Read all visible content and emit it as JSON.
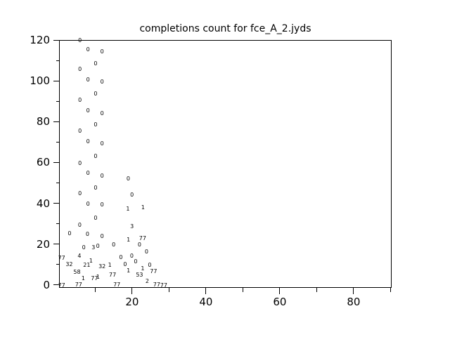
{
  "chart_data": {
    "type": "scatter",
    "title": "completions count for fce_A_2.jyds",
    "xlabel": "",
    "ylabel": "",
    "xlim": [
      0.2,
      90.3
    ],
    "ylim": [
      -1.44,
      120
    ],
    "x_major_ticks": [
      20,
      40,
      60,
      80
    ],
    "x_minor_ticks": [
      10,
      30,
      50,
      70,
      90
    ],
    "y_major_ticks": [
      0,
      20,
      40,
      60,
      80,
      100,
      120
    ],
    "y_minor_ticks": [
      10,
      30,
      50,
      70,
      90,
      110
    ],
    "grid": "off",
    "legend": "none",
    "marker_style": "text-label",
    "colors": {
      "foreground": "#000000",
      "background": "#ffffff"
    },
    "points": [
      {
        "x": 5.85,
        "y": 119.8,
        "label": "0"
      },
      {
        "x": 5.85,
        "y": 105.7,
        "label": "0"
      },
      {
        "x": 5.85,
        "y": 90.4,
        "label": "0"
      },
      {
        "x": 5.85,
        "y": 75.4,
        "label": "0"
      },
      {
        "x": 5.85,
        "y": 59.4,
        "label": "0"
      },
      {
        "x": 5.85,
        "y": 44.7,
        "label": "0"
      },
      {
        "x": 5.8,
        "y": 29.3,
        "label": "0"
      },
      {
        "x": 8.05,
        "y": 115.3,
        "label": "0"
      },
      {
        "x": 8.05,
        "y": 100.4,
        "label": "0"
      },
      {
        "x": 8.05,
        "y": 85.2,
        "label": "0"
      },
      {
        "x": 8.05,
        "y": 70.1,
        "label": "0"
      },
      {
        "x": 8.05,
        "y": 54.6,
        "label": "0"
      },
      {
        "x": 8.05,
        "y": 39.6,
        "label": "0"
      },
      {
        "x": 7.9,
        "y": 24.8,
        "label": "0"
      },
      {
        "x": 10.08,
        "y": 108.2,
        "label": "0"
      },
      {
        "x": 10.08,
        "y": 93.4,
        "label": "0"
      },
      {
        "x": 10.08,
        "y": 78.4,
        "label": "0"
      },
      {
        "x": 10.08,
        "y": 62.9,
        "label": "0"
      },
      {
        "x": 10.08,
        "y": 47.5,
        "label": "0"
      },
      {
        "x": 10.08,
        "y": 32.7,
        "label": "0"
      },
      {
        "x": 11.85,
        "y": 114.2,
        "label": "0"
      },
      {
        "x": 11.85,
        "y": 99.3,
        "label": "0"
      },
      {
        "x": 11.85,
        "y": 83.9,
        "label": "0"
      },
      {
        "x": 11.85,
        "y": 69.2,
        "label": "0"
      },
      {
        "x": 11.85,
        "y": 53.3,
        "label": "0"
      },
      {
        "x": 11.85,
        "y": 39.3,
        "label": "0"
      },
      {
        "x": 11.85,
        "y": 23.8,
        "label": "0"
      },
      {
        "x": 18.95,
        "y": 51.8,
        "label": "0"
      },
      {
        "x": 19.95,
        "y": 43.9,
        "label": "0"
      },
      {
        "x": 18.85,
        "y": 37.0,
        "label": "1"
      },
      {
        "x": 22.95,
        "y": 37.8,
        "label": "1"
      },
      {
        "x": 19.95,
        "y": 28.6,
        "label": "3"
      },
      {
        "x": 19.0,
        "y": 21.8,
        "label": "1"
      },
      {
        "x": 22.85,
        "y": 22.7,
        "label": "77"
      },
      {
        "x": 22.0,
        "y": 19.6,
        "label": "0"
      },
      {
        "x": 15.0,
        "y": 19.5,
        "label": "0"
      },
      {
        "x": 23.9,
        "y": 16.0,
        "label": "0"
      },
      {
        "x": 19.9,
        "y": 14.0,
        "label": "0"
      },
      {
        "x": 16.95,
        "y": 13.5,
        "label": "0"
      },
      {
        "x": 20.95,
        "y": 11.4,
        "label": "0"
      },
      {
        "x": 18.1,
        "y": 10.0,
        "label": "0"
      },
      {
        "x": 24.75,
        "y": 9.7,
        "label": "0"
      },
      {
        "x": 22.85,
        "y": 8.0,
        "label": "1"
      },
      {
        "x": 19.0,
        "y": 6.9,
        "label": "1"
      },
      {
        "x": 25.8,
        "y": 6.6,
        "label": "77"
      },
      {
        "x": 22.0,
        "y": 4.9,
        "label": "53"
      },
      {
        "x": 24.1,
        "y": 1.7,
        "label": "2"
      },
      {
        "x": 26.65,
        "y": 0.1,
        "label": "77"
      },
      {
        "x": 28.55,
        "y": -0.5,
        "label": "77"
      },
      {
        "x": 0.9,
        "y": 13.1,
        "label": "77"
      },
      {
        "x": 5.7,
        "y": 14.1,
        "label": "4"
      },
      {
        "x": 6.9,
        "y": 18.3,
        "label": "0"
      },
      {
        "x": 9.5,
        "y": 18.3,
        "label": "3"
      },
      {
        "x": 10.7,
        "y": 18.9,
        "label": "0"
      },
      {
        "x": 3.05,
        "y": 24.9,
        "label": "0"
      },
      {
        "x": 2.95,
        "y": 10.0,
        "label": "32"
      },
      {
        "x": 7.7,
        "y": 9.7,
        "label": "21"
      },
      {
        "x": 8.85,
        "y": 11.8,
        "label": "1"
      },
      {
        "x": 11.85,
        "y": 8.9,
        "label": "32"
      },
      {
        "x": 13.95,
        "y": 9.7,
        "label": "1"
      },
      {
        "x": 5.05,
        "y": 6.1,
        "label": "58"
      },
      {
        "x": 14.7,
        "y": 4.6,
        "label": "77"
      },
      {
        "x": 6.75,
        "y": 2.9,
        "label": "1"
      },
      {
        "x": 9.8,
        "y": 2.9,
        "label": "77"
      },
      {
        "x": 10.75,
        "y": 3.8,
        "label": "1"
      },
      {
        "x": 0.9,
        "y": -0.3,
        "label": "77"
      },
      {
        "x": 5.5,
        "y": -0.2,
        "label": "77"
      },
      {
        "x": 15.85,
        "y": -0.1,
        "label": "77"
      }
    ]
  }
}
